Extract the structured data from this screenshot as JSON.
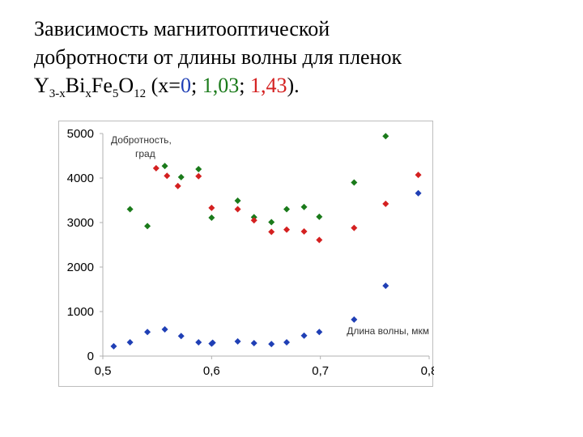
{
  "title": {
    "line1": "Зависимость магнитооптической",
    "line2": "добротности от длины волны для пленок",
    "formula": {
      "y": "Y",
      "y_sub": "3-x",
      "bi": "Bi",
      "bi_sub": "x",
      "fe": "Fe",
      "fe_sub": "5",
      "o": "O",
      "o_sub": "12"
    },
    "paren_open": " (x=",
    "x0": "0",
    "sep1": "; ",
    "x1": "1,03",
    "sep2": "; ",
    "x2": "1,43",
    "paren_close": ")."
  },
  "colors": {
    "x0": "#1f3fb5",
    "x1": "#1a7a1a",
    "x2": "#d42020",
    "frame": "#bdbdbd",
    "axis": "#b0b0b0"
  },
  "chart_data": {
    "type": "scatter",
    "ylabel": "Добротность,\nград",
    "xlabel": "Длина волны, мкм",
    "xlim": [
      0.5,
      0.8
    ],
    "ylim": [
      0,
      5000
    ],
    "x_ticks": [
      "0,5",
      "0,6",
      "0,7",
      "0,8"
    ],
    "x_tick_values": [
      0.5,
      0.6,
      0.7,
      0.8
    ],
    "y_ticks": [
      "0",
      "1000",
      "2000",
      "3000",
      "4000",
      "5000"
    ],
    "y_tick_values": [
      0,
      1000,
      2000,
      3000,
      4000,
      5000
    ],
    "grid": false,
    "series": [
      {
        "color": "#1f3fb5",
        "marker": "diamond",
        "points": [
          [
            0.51,
            220
          ],
          [
            0.525,
            310
          ],
          [
            0.541,
            540
          ],
          [
            0.557,
            600
          ],
          [
            0.572,
            450
          ],
          [
            0.588,
            310
          ],
          [
            0.6,
            280
          ],
          [
            0.601,
            300
          ],
          [
            0.624,
            330
          ],
          [
            0.639,
            290
          ],
          [
            0.655,
            270
          ],
          [
            0.669,
            310
          ],
          [
            0.685,
            460
          ],
          [
            0.699,
            540
          ],
          [
            0.731,
            820
          ],
          [
            0.76,
            1580
          ],
          [
            0.79,
            3660
          ]
        ]
      },
      {
        "color": "#1a7a1a",
        "marker": "diamond",
        "points": [
          [
            0.525,
            3300
          ],
          [
            0.541,
            2920
          ],
          [
            0.557,
            4270
          ],
          [
            0.572,
            4020
          ],
          [
            0.588,
            4200
          ],
          [
            0.6,
            3110
          ],
          [
            0.624,
            3490
          ],
          [
            0.639,
            3120
          ],
          [
            0.655,
            3010
          ],
          [
            0.669,
            3300
          ],
          [
            0.685,
            3350
          ],
          [
            0.699,
            3130
          ],
          [
            0.731,
            3900
          ],
          [
            0.76,
            4940
          ]
        ]
      },
      {
        "color": "#d42020",
        "marker": "diamond",
        "points": [
          [
            0.549,
            4220
          ],
          [
            0.559,
            4050
          ],
          [
            0.569,
            3820
          ],
          [
            0.588,
            4040
          ],
          [
            0.6,
            3330
          ],
          [
            0.624,
            3300
          ],
          [
            0.639,
            3050
          ],
          [
            0.655,
            2790
          ],
          [
            0.669,
            2840
          ],
          [
            0.685,
            2800
          ],
          [
            0.699,
            2610
          ],
          [
            0.731,
            2880
          ],
          [
            0.76,
            3420
          ],
          [
            0.79,
            4070
          ]
        ]
      }
    ]
  }
}
